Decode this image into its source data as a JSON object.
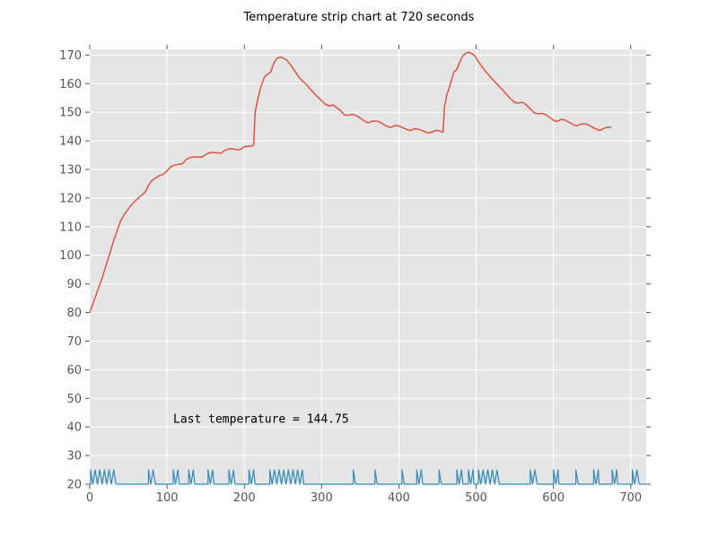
{
  "chart_data": {
    "type": "line",
    "title": "Temperature strip chart at 720 seconds",
    "xlabel": "",
    "ylabel": "",
    "xlim": [
      0,
      720
    ],
    "ylim": [
      20,
      172
    ],
    "x_ticks": [
      0,
      100,
      200,
      300,
      400,
      500,
      600,
      700
    ],
    "y_ticks": [
      20,
      30,
      40,
      50,
      60,
      70,
      80,
      90,
      100,
      110,
      120,
      130,
      140,
      150,
      160,
      170
    ],
    "grid": true,
    "background": "#e5e5e5",
    "annotation": {
      "text": "Last temperature = 144.75",
      "x": 108,
      "y": 43
    },
    "series": [
      {
        "color": "#e24a33",
        "points": [
          [
            0,
            80
          ],
          [
            4,
            83
          ],
          [
            8,
            86
          ],
          [
            12,
            89
          ],
          [
            16,
            92
          ],
          [
            20,
            95.5
          ],
          [
            24,
            99
          ],
          [
            28,
            102.5
          ],
          [
            32,
            106
          ],
          [
            36,
            109
          ],
          [
            40,
            112
          ],
          [
            44,
            114
          ],
          [
            48,
            115.5
          ],
          [
            52,
            117
          ],
          [
            56,
            118.2
          ],
          [
            60,
            119.3
          ],
          [
            64,
            120.3
          ],
          [
            68,
            121.2
          ],
          [
            72,
            122.2
          ],
          [
            76,
            124.5
          ],
          [
            80,
            126
          ],
          [
            85,
            127
          ],
          [
            90,
            127.8
          ],
          [
            95,
            128.3
          ],
          [
            100,
            129.5
          ],
          [
            105,
            131
          ],
          [
            110,
            131.6
          ],
          [
            115,
            131.8
          ],
          [
            120,
            132
          ],
          [
            125,
            133.5
          ],
          [
            130,
            134.2
          ],
          [
            135,
            134.4
          ],
          [
            140,
            134.4
          ],
          [
            145,
            134.3
          ],
          [
            150,
            135.2
          ],
          [
            155,
            135.9
          ],
          [
            160,
            136
          ],
          [
            165,
            135.8
          ],
          [
            170,
            135.7
          ],
          [
            175,
            136.7
          ],
          [
            180,
            137.2
          ],
          [
            185,
            137.2
          ],
          [
            190,
            136.9
          ],
          [
            195,
            137
          ],
          [
            200,
            138
          ],
          [
            205,
            138.1
          ],
          [
            210,
            138.2
          ],
          [
            212,
            138.5
          ],
          [
            214,
            150
          ],
          [
            217,
            154
          ],
          [
            220,
            157.5
          ],
          [
            223,
            160
          ],
          [
            226,
            162.3
          ],
          [
            230,
            163.3
          ],
          [
            234,
            164
          ],
          [
            238,
            167
          ],
          [
            242,
            168.8
          ],
          [
            246,
            169.3
          ],
          [
            250,
            169
          ],
          [
            255,
            168.2
          ],
          [
            260,
            166.5
          ],
          [
            265,
            164.5
          ],
          [
            270,
            162.5
          ],
          [
            275,
            161
          ],
          [
            280,
            159.8
          ],
          [
            285,
            158.2
          ],
          [
            290,
            156.8
          ],
          [
            295,
            155.4
          ],
          [
            300,
            154
          ],
          [
            305,
            152.8
          ],
          [
            310,
            152.2
          ],
          [
            315,
            152.5
          ],
          [
            320,
            151.5
          ],
          [
            325,
            150.4
          ],
          [
            330,
            149
          ],
          [
            335,
            149
          ],
          [
            340,
            149.3
          ],
          [
            345,
            148.8
          ],
          [
            350,
            148
          ],
          [
            355,
            147
          ],
          [
            360,
            146.3
          ],
          [
            365,
            146.8
          ],
          [
            370,
            147
          ],
          [
            375,
            146.6
          ],
          [
            380,
            145.8
          ],
          [
            385,
            145
          ],
          [
            390,
            144.7
          ],
          [
            395,
            145.4
          ],
          [
            400,
            145.2
          ],
          [
            405,
            144.6
          ],
          [
            410,
            144
          ],
          [
            415,
            143.6
          ],
          [
            420,
            144.2
          ],
          [
            425,
            144.1
          ],
          [
            430,
            143.6
          ],
          [
            435,
            143
          ],
          [
            440,
            142.8
          ],
          [
            445,
            143.4
          ],
          [
            450,
            143.7
          ],
          [
            455,
            143.2
          ],
          [
            457,
            143
          ],
          [
            459,
            152
          ],
          [
            462,
            156
          ],
          [
            465,
            158.5
          ],
          [
            468,
            161
          ],
          [
            471,
            164
          ],
          [
            475,
            165
          ],
          [
            478,
            167
          ],
          [
            482,
            169.5
          ],
          [
            486,
            170.6
          ],
          [
            490,
            171
          ],
          [
            494,
            170.6
          ],
          [
            498,
            169.8
          ],
          [
            502,
            168
          ],
          [
            506,
            166.5
          ],
          [
            510,
            165
          ],
          [
            515,
            163.4
          ],
          [
            520,
            161.8
          ],
          [
            525,
            160.4
          ],
          [
            530,
            159
          ],
          [
            535,
            157.6
          ],
          [
            540,
            156
          ],
          [
            545,
            154.6
          ],
          [
            550,
            153.4
          ],
          [
            555,
            153.2
          ],
          [
            560,
            153.5
          ],
          [
            565,
            152.6
          ],
          [
            570,
            151.2
          ],
          [
            575,
            149.8
          ],
          [
            580,
            149.5
          ],
          [
            585,
            149.6
          ],
          [
            590,
            149.2
          ],
          [
            595,
            148.2
          ],
          [
            600,
            147.2
          ],
          [
            605,
            146.8
          ],
          [
            610,
            147.5
          ],
          [
            615,
            147.3
          ],
          [
            620,
            146.5
          ],
          [
            625,
            145.8
          ],
          [
            630,
            145.2
          ],
          [
            635,
            145.8
          ],
          [
            640,
            146
          ],
          [
            645,
            145.6
          ],
          [
            650,
            144.8
          ],
          [
            655,
            144.2
          ],
          [
            660,
            143.6
          ],
          [
            665,
            144.3
          ],
          [
            670,
            144.8
          ],
          [
            675,
            144.75
          ]
        ]
      },
      {
        "color": "#348abd",
        "low": 20,
        "high": 25,
        "on_intervals": [
          [
            1,
            36
          ],
          [
            76,
            86
          ],
          [
            108,
            116
          ],
          [
            128,
            136
          ],
          [
            153,
            161
          ],
          [
            180,
            188
          ],
          [
            206,
            214
          ],
          [
            233,
            277
          ],
          [
            341,
            347
          ],
          [
            369,
            375
          ],
          [
            404,
            410
          ],
          [
            423,
            431
          ],
          [
            452,
            458
          ],
          [
            475,
            483
          ],
          [
            490,
            497
          ],
          [
            503,
            533
          ],
          [
            570,
            580
          ],
          [
            600,
            607
          ],
          [
            629,
            635
          ],
          [
            652,
            659
          ],
          [
            676,
            683
          ],
          [
            702,
            711
          ]
        ],
        "toggle_period": 3
      }
    ]
  }
}
